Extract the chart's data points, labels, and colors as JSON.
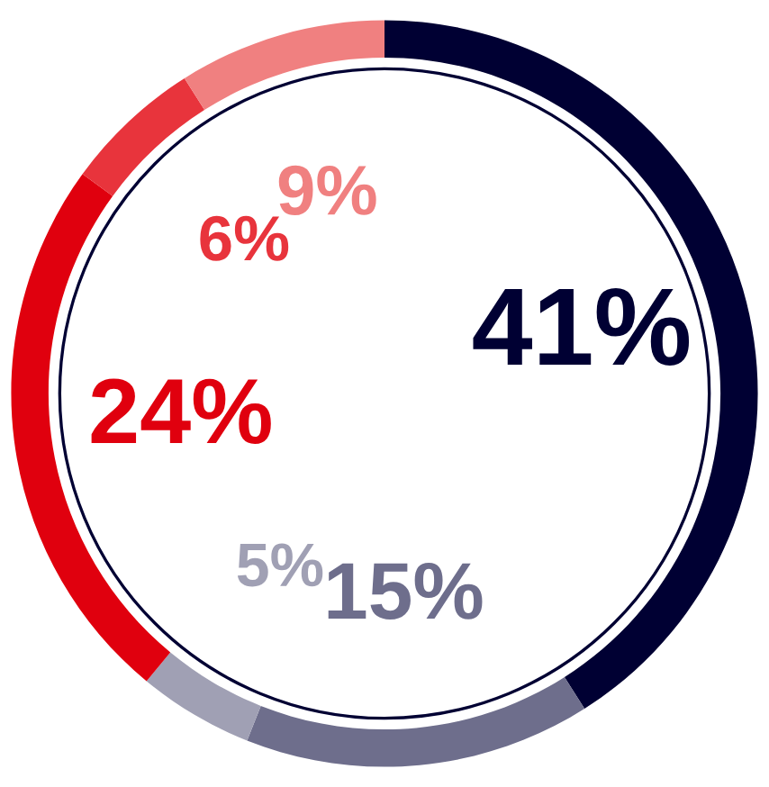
{
  "chart_data": {
    "type": "donut",
    "categories": [
      null,
      null,
      null,
      null,
      null,
      null
    ],
    "values": [
      41,
      15,
      5,
      24,
      6,
      9
    ],
    "colors": [
      "#000033",
      "#6e6e8c",
      "#a0a0b4",
      "#e0000e",
      "#e8343c",
      "#f08080"
    ],
    "value_labels": [
      "41%",
      "15%",
      "5%",
      "24%",
      "6%",
      "9%"
    ]
  }
}
